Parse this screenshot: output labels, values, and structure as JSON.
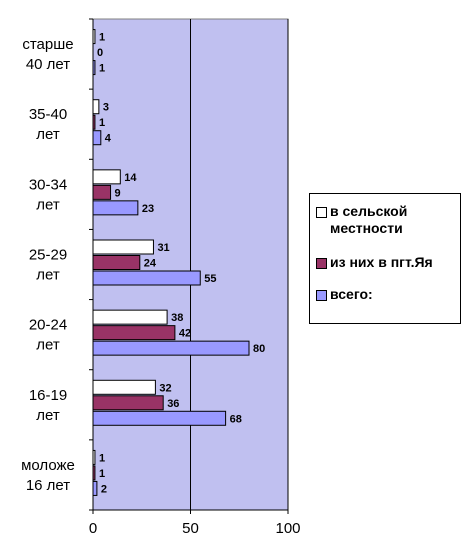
{
  "chart_data": {
    "type": "bar",
    "orientation": "horizontal",
    "categories": [
      [
        "старше",
        "40 лет"
      ],
      [
        "35-40",
        "лет"
      ],
      [
        "30-34",
        "лет"
      ],
      [
        "25-29",
        "лет"
      ],
      [
        "20-24",
        "лет"
      ],
      [
        "16-19",
        "лет"
      ],
      [
        "моложе",
        "16 лет"
      ]
    ],
    "series": [
      {
        "name": "в сельской местности",
        "color": "#ffffff",
        "values": [
          1,
          3,
          14,
          31,
          38,
          32,
          1
        ]
      },
      {
        "name": "из  них в пгт.Яя",
        "color": "#993366",
        "values": [
          0,
          1,
          9,
          24,
          42,
          36,
          1
        ]
      },
      {
        "name": "всего:",
        "color": "#9999ff",
        "values": [
          1,
          4,
          23,
          55,
          80,
          68,
          2
        ]
      }
    ],
    "xlim": [
      0,
      100
    ],
    "xticks": [
      0,
      50,
      100
    ],
    "plot_background": "#c0c0f0",
    "grid": true,
    "legend_position": "right"
  }
}
